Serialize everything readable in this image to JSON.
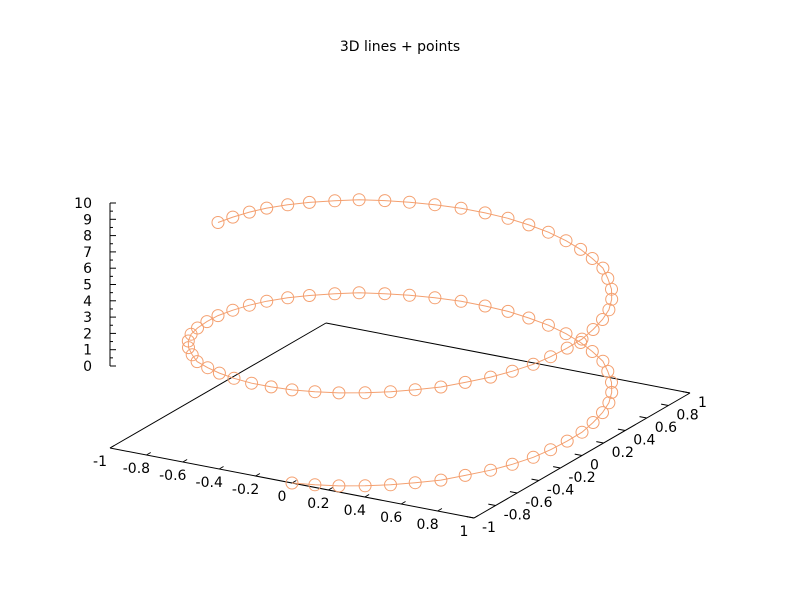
{
  "chart_data": {
    "type": "line",
    "title": "3D lines + points",
    "projection": "3d",
    "color": "#f4a070",
    "marker": "open-circle",
    "xlim": [
      -1,
      1
    ],
    "ylim": [
      -1,
      1
    ],
    "zlim": [
      0,
      10
    ],
    "x_ticks": [
      "-1",
      "-0.8",
      "-0.6",
      "-0.4",
      "-0.2",
      "0",
      "0.2",
      "0.4",
      "0.6",
      "0.8",
      "1"
    ],
    "y_ticks": [
      "-1",
      "-0.8",
      "-0.6",
      "-0.4",
      "-0.2",
      "0",
      "0.2",
      "0.4",
      "0.6",
      "0.8",
      "1"
    ],
    "z_ticks": [
      "0",
      "1",
      "2",
      "3",
      "4",
      "5",
      "6",
      "7",
      "8",
      "9",
      "10"
    ],
    "series": [
      {
        "x": [
          0.0,
          0.12,
          0.24,
          0.36,
          0.47,
          0.57,
          0.67,
          0.75,
          0.83,
          0.89,
          0.94,
          0.97,
          0.99,
          1.0,
          0.99,
          0.97,
          0.94,
          0.89,
          0.83,
          0.75,
          0.67,
          0.57,
          0.47,
          0.36,
          0.24,
          0.12,
          0.0,
          -0.12,
          -0.24,
          -0.36,
          -0.47,
          -0.57,
          -0.67,
          -0.75,
          -0.83,
          -0.89,
          -0.94,
          -0.97,
          -0.99,
          -1.0,
          -0.99,
          -0.97,
          -0.94,
          -0.89,
          -0.83,
          -0.75,
          -0.67,
          -0.57,
          -0.47,
          -0.36,
          -0.24,
          -0.12,
          0.0,
          0.12,
          0.24,
          0.36,
          0.47,
          0.57,
          0.67,
          0.75,
          0.83,
          0.89,
          0.94,
          0.97,
          0.99,
          1.0,
          0.99,
          0.97,
          0.94,
          0.89,
          0.83,
          0.75,
          0.67,
          0.57,
          0.47,
          0.36,
          0.24,
          0.12,
          0.0,
          -0.12,
          -0.24,
          -0.36,
          -0.47,
          -0.57,
          -0.67,
          -0.75,
          -0.83,
          -0.89,
          -0.94,
          -0.97,
          -0.99,
          -1.0
        ],
        "y": [
          -1.0,
          -0.99,
          -0.97,
          -0.93,
          -0.88,
          -0.82,
          -0.75,
          -0.66,
          -0.56,
          -0.46,
          -0.35,
          -0.24,
          -0.12,
          0.0,
          0.12,
          0.24,
          0.35,
          0.46,
          0.56,
          0.66,
          0.75,
          0.82,
          0.88,
          0.93,
          0.97,
          0.99,
          1.0,
          0.99,
          0.97,
          0.93,
          0.88,
          0.82,
          0.75,
          0.66,
          0.56,
          0.46,
          0.35,
          0.24,
          0.12,
          0.0,
          -0.12,
          -0.24,
          -0.35,
          -0.46,
          -0.56,
          -0.66,
          -0.75,
          -0.82,
          -0.88,
          -0.93,
          -0.97,
          -0.99,
          -1.0,
          -0.99,
          -0.97,
          -0.93,
          -0.88,
          -0.82,
          -0.75,
          -0.66,
          -0.56,
          -0.46,
          -0.35,
          -0.24,
          -0.12,
          0.0,
          0.12,
          0.24,
          0.35,
          0.46,
          0.56,
          0.66,
          0.75,
          0.82,
          0.88,
          0.93,
          0.97,
          0.99,
          1.0,
          0.99,
          0.97,
          0.93,
          0.88,
          0.82,
          0.75,
          0.66,
          0.56,
          0.46,
          0.35,
          0.24,
          0.12,
          0.0
        ],
        "z": [
          0.0,
          0.11,
          0.22,
          0.33,
          0.44,
          0.55,
          0.66,
          0.77,
          0.88,
          0.99,
          1.1,
          1.21,
          1.32,
          1.43,
          1.54,
          1.65,
          1.76,
          1.87,
          1.98,
          2.09,
          2.2,
          2.31,
          2.42,
          2.53,
          2.64,
          2.75,
          2.86,
          2.97,
          3.08,
          3.19,
          3.3,
          3.41,
          3.52,
          3.63,
          3.74,
          3.85,
          3.96,
          4.07,
          4.18,
          4.29,
          4.4,
          4.51,
          4.62,
          4.73,
          4.84,
          4.95,
          5.05,
          5.16,
          5.27,
          5.38,
          5.49,
          5.6,
          5.71,
          5.82,
          5.93,
          6.04,
          6.15,
          6.26,
          6.37,
          6.48,
          6.59,
          6.7,
          6.81,
          6.92,
          7.03,
          7.14,
          7.25,
          7.36,
          7.47,
          7.58,
          7.69,
          7.8,
          7.91,
          8.02,
          8.13,
          8.24,
          8.35,
          8.46,
          8.57,
          8.68,
          8.79,
          8.9,
          9.01,
          9.12,
          9.23,
          9.34,
          9.45,
          9.56,
          9.67,
          9.78,
          9.89,
          10.0
        ]
      }
    ]
  }
}
